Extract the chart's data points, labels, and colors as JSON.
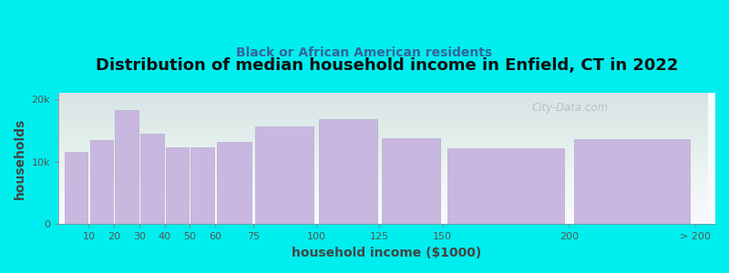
{
  "title": "Distribution of median household income in Enfield, CT in 2022",
  "subtitle": "Black or African American residents",
  "xlabel": "household income ($1000)",
  "ylabel": "households",
  "bar_color": "#c8b8e0",
  "bar_edge_color": "#b8a8d0",
  "background_color": "#00eeee",
  "plot_bg_start": "#e8f5ea",
  "plot_bg_end": "#f8f8ff",
  "ylim": [
    0,
    21000
  ],
  "yticks": [
    0,
    10000,
    20000
  ],
  "ytick_labels": [
    "0",
    "10k",
    "20k"
  ],
  "watermark": "City-Data.com",
  "title_fontsize": 13,
  "subtitle_fontsize": 10,
  "tick_fontsize": 8,
  "axis_label_fontsize": 10,
  "bin_edges": [
    0,
    10,
    20,
    30,
    40,
    50,
    60,
    75,
    100,
    125,
    150,
    200,
    250
  ],
  "bin_labels": [
    "10",
    "20",
    "30",
    "40",
    "50",
    "60",
    "75",
    "100",
    "125",
    "150",
    "200",
    "> 200"
  ],
  "values": [
    11500,
    13500,
    18200,
    14500,
    12300,
    12300,
    13200,
    15600,
    16800,
    13800,
    12200,
    13600
  ]
}
